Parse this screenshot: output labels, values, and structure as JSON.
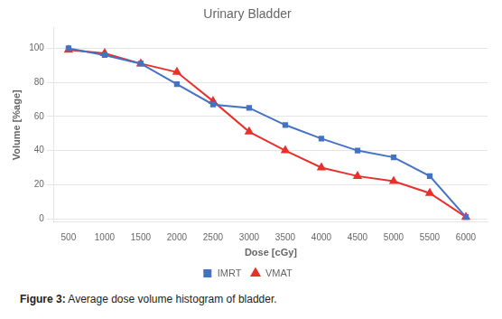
{
  "chart_data": {
    "type": "line",
    "title": "Urinary Bladder",
    "x_label": "Dose [cGy]",
    "y_label": "Volume [%age]",
    "annotations": [
      "Figure 3:",
      "Average dose volume histogram of bladder."
    ],
    "x": [
      500,
      1000,
      1500,
      2000,
      2500,
      3000,
      3500,
      4000,
      4500,
      5000,
      5500,
      6000
    ],
    "series": [
      {
        "name": "IMRT",
        "color": "#4472C4",
        "marker": "square",
        "values": [
          100,
          96,
          91,
          79,
          67,
          65,
          55,
          47,
          40,
          36,
          25,
          1
        ]
      },
      {
        "name": "VMAT",
        "color": "#E8312A",
        "marker": "triangle",
        "values": [
          99,
          97,
          91,
          86,
          69,
          51,
          40,
          30,
          25,
          22,
          15,
          1
        ]
      }
    ],
    "xlim": [
      300,
      6300
    ],
    "xticks": [
      500,
      1000,
      1500,
      2000,
      2500,
      3000,
      3500,
      4000,
      4500,
      5000,
      5500,
      6000
    ],
    "ylim": [
      -2,
      112
    ],
    "yticks": [
      0,
      20,
      40,
      60,
      80,
      100
    ],
    "grid": "y",
    "legend": "bottom"
  }
}
